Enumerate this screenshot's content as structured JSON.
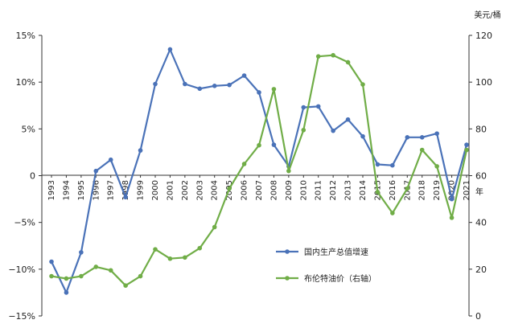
{
  "chart_data": {
    "type": "line",
    "x": [
      1993,
      1994,
      1995,
      1996,
      1997,
      1998,
      1999,
      2000,
      2001,
      2002,
      2003,
      2004,
      2005,
      2006,
      2007,
      2008,
      2009,
      2010,
      2011,
      2012,
      2013,
      2014,
      2015,
      2016,
      2017,
      2018,
      2019,
      2020,
      2021
    ],
    "x_tick_labels": [
      "1993",
      "1994",
      "1995",
      "1996",
      "1997",
      "1998",
      "1999",
      "2000",
      "2001",
      "2002",
      "2003",
      "2004",
      "2005",
      "2006",
      "2007",
      "2008",
      "2009",
      "2010",
      "2011",
      "2012",
      "2013",
      "2014",
      "2015",
      "2016",
      "2017",
      "2018",
      "2019",
      "2020",
      "2021"
    ],
    "x_unit_label": "年",
    "y_left": {
      "min": -15,
      "max": 15,
      "step": 5,
      "tick_labels": [
        "15%",
        "10%",
        "5%",
        "0",
        "−5%",
        "−10%",
        "−15%"
      ]
    },
    "y_right": {
      "min": 0,
      "max": 120,
      "step": 20,
      "tick_labels": [
        "120",
        "100",
        "80",
        "60",
        "40",
        "20",
        "0"
      ],
      "unit_label": "美元/桶"
    },
    "series": [
      {
        "name": "国内生产总值增速",
        "axis": "left",
        "color": "#4a72b8",
        "values": [
          -9.2,
          -12.5,
          -8.2,
          0.5,
          1.7,
          -2.3,
          2.7,
          9.8,
          13.5,
          9.8,
          9.3,
          9.6,
          9.7,
          10.7,
          8.9,
          3.3,
          1.0,
          7.3,
          7.4,
          4.8,
          6.0,
          4.2,
          1.2,
          1.1,
          4.1,
          4.1,
          4.5,
          -2.5,
          3.3
        ]
      },
      {
        "name": "布伦特油价（右轴）",
        "axis": "right",
        "color": "#70ad47",
        "values": [
          17,
          16,
          17,
          21,
          19.5,
          13,
          17,
          28.5,
          24.5,
          25,
          29,
          38,
          54.5,
          65,
          73,
          97,
          62,
          79.5,
          111,
          111.5,
          108.5,
          99,
          53,
          44,
          54.5,
          71,
          64,
          42,
          71
        ]
      }
    ],
    "legend_position": "center-right",
    "grid": false
  }
}
